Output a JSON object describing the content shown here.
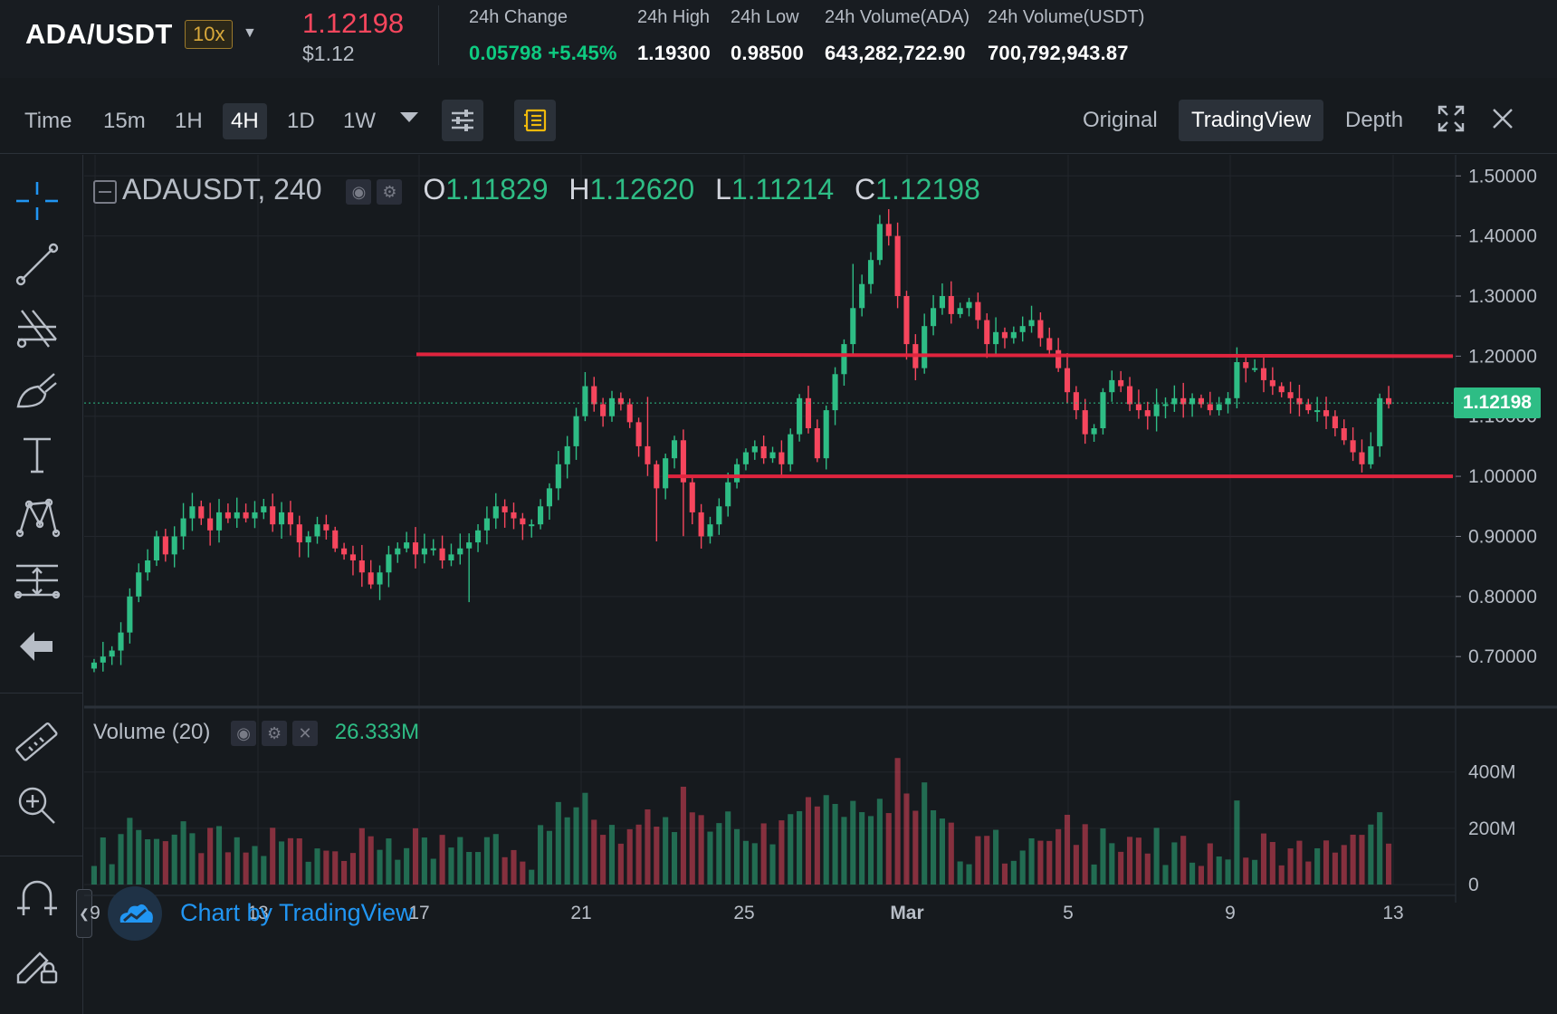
{
  "header": {
    "pair": "ADA/USDT",
    "leverage": "10x",
    "last_price": "1.12198",
    "last_price_usd": "$1.12",
    "stats": [
      {
        "label": "24h Change",
        "value": "0.05798 +5.45%",
        "up": true
      },
      {
        "label": "24h High",
        "value": "1.19300"
      },
      {
        "label": "24h Low",
        "value": "0.98500"
      },
      {
        "label": "24h Volume(ADA)",
        "value": "643,282,722.90"
      },
      {
        "label": "24h Volume(USDT)",
        "value": "700,792,943.87"
      }
    ]
  },
  "toolbar": {
    "intervals": [
      "Time",
      "15m",
      "1H",
      "4H",
      "1D",
      "1W"
    ],
    "active_interval": "4H",
    "views": [
      "Original",
      "TradingView",
      "Depth"
    ],
    "active_view": "TradingView",
    "icons": [
      "indicators-icon",
      "notes-icon",
      "fullscreen-icon",
      "close-icon"
    ]
  },
  "rail_tools": [
    "crosshair-icon",
    "trendline-icon",
    "pitchfork-icon",
    "brush-icon",
    "text-icon",
    "pattern-icon",
    "measure-icon",
    "back-arrow-icon",
    "ruler-icon",
    "zoom-in-icon",
    "magnet-icon",
    "lock-drawings-icon"
  ],
  "legend": {
    "symbol": "ADAUSDT, 240",
    "o_label": "O",
    "o": "1.11829",
    "h_label": "H",
    "h": "1.12620",
    "l_label": "L",
    "l": "1.11214",
    "c_label": "C",
    "c": "1.12198"
  },
  "volume_legend": {
    "label": "Volume (20)",
    "value": "26.333M"
  },
  "last_price_label": "1.12198",
  "brand": "Chart by TradingView",
  "colors": {
    "up": "#2ebd85",
    "down": "#f6465d",
    "line": "#e0243e",
    "bg": "#161a1e"
  },
  "chart_data": [
    {
      "type": "candlestick",
      "title": "ADAUSDT, 240",
      "x_ticks": [
        "9",
        "13",
        "17",
        "21",
        "25",
        "Mar",
        "5",
        "9",
        "13"
      ],
      "y_ticks": [
        "1.50000",
        "1.40000",
        "1.30000",
        "1.20000",
        "1.10000",
        "1.00000",
        "0.90000",
        "0.80000",
        "0.70000"
      ],
      "ylim": [
        0.64,
        1.52
      ],
      "grid": true,
      "horizontal_lines": [
        {
          "y": 1.2,
          "from_tick": "17.5",
          "label": "resistance"
        },
        {
          "y": 1.0,
          "from_tick": "24.6",
          "label": "support"
        }
      ],
      "close_approx": [
        0.69,
        0.7,
        0.71,
        0.74,
        0.8,
        0.84,
        0.86,
        0.9,
        0.87,
        0.9,
        0.93,
        0.95,
        0.93,
        0.91,
        0.94,
        0.93,
        0.94,
        0.93,
        0.94,
        0.95,
        0.92,
        0.94,
        0.92,
        0.89,
        0.9,
        0.92,
        0.91,
        0.88,
        0.87,
        0.86,
        0.84,
        0.82,
        0.84,
        0.87,
        0.88,
        0.89,
        0.87,
        0.88,
        0.88,
        0.86,
        0.87,
        0.88,
        0.89,
        0.91,
        0.93,
        0.95,
        0.94,
        0.93,
        0.92,
        0.92,
        0.95,
        0.98,
        1.02,
        1.05,
        1.1,
        1.15,
        1.12,
        1.1,
        1.13,
        1.12,
        1.09,
        1.05,
        1.02,
        0.98,
        1.03,
        1.06,
        0.99,
        0.94,
        0.9,
        0.92,
        0.95,
        0.99,
        1.02,
        1.04,
        1.05,
        1.03,
        1.04,
        1.02,
        1.07,
        1.13,
        1.08,
        1.03,
        1.11,
        1.17,
        1.22,
        1.28,
        1.32,
        1.36,
        1.42,
        1.4,
        1.3,
        1.22,
        1.18,
        1.25,
        1.28,
        1.3,
        1.27,
        1.28,
        1.29,
        1.26,
        1.22,
        1.24,
        1.23,
        1.24,
        1.25,
        1.26,
        1.23,
        1.21,
        1.18,
        1.14,
        1.11,
        1.07,
        1.08,
        1.14,
        1.16,
        1.15,
        1.12,
        1.11,
        1.1,
        1.12,
        1.12,
        1.13,
        1.12,
        1.13,
        1.12,
        1.11,
        1.12,
        1.13,
        1.19,
        1.18,
        1.18,
        1.16,
        1.15,
        1.14,
        1.13,
        1.12,
        1.11,
        1.11,
        1.1,
        1.08,
        1.06,
        1.04,
        1.02,
        1.05,
        1.13,
        1.12
      ]
    },
    {
      "type": "bar",
      "title": "Volume (20)",
      "y_ticks": [
        "400M",
        "200M",
        "0"
      ],
      "ylim": [
        0,
        560
      ],
      "unit": "M",
      "last_value": "26.333M"
    }
  ]
}
